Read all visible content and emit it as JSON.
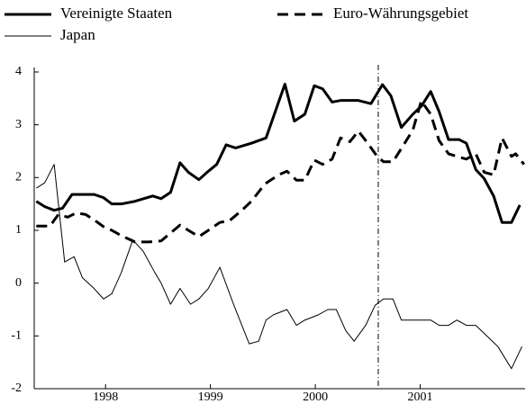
{
  "chart_data": {
    "type": "line",
    "xlim": [
      1997.82,
      2002.5
    ],
    "xticks": [
      {
        "value": 1998.5,
        "label": "1998"
      },
      {
        "value": 1999.5,
        "label": "1999"
      },
      {
        "value": 2000.5,
        "label": "2000"
      },
      {
        "value": 2001.5,
        "label": "2001"
      }
    ],
    "ylim": [
      -2,
      4
    ],
    "yticks": [
      -2,
      -1,
      0,
      1,
      2,
      3,
      4
    ],
    "vline": 2001.1,
    "series": [
      {
        "name": "Vereinigte Staaten",
        "color": "#000000",
        "width": 3,
        "dash": "solid",
        "x": [
          1997.84,
          1997.92,
          1998.01,
          1998.09,
          1998.18,
          1998.26,
          1998.39,
          1998.48,
          1998.56,
          1998.65,
          1998.78,
          1998.95,
          1999.03,
          1999.12,
          1999.21,
          1999.29,
          1999.39,
          1999.48,
          1999.56,
          1999.65,
          1999.74,
          1999.89,
          2000.03,
          2000.21,
          2000.3,
          2000.4,
          2000.49,
          2000.57,
          2000.66,
          2000.74,
          2000.91,
          2001.03,
          2001.14,
          2001.22,
          2001.32,
          2001.43,
          2001.51,
          2001.6,
          2001.68,
          2001.77,
          2001.87,
          2001.94,
          2002.03,
          2002.11,
          2002.2,
          2002.28,
          2002.37,
          2002.45
        ],
        "values": [
          1.55,
          1.45,
          1.38,
          1.42,
          1.68,
          1.68,
          1.68,
          1.62,
          1.5,
          1.5,
          1.55,
          1.65,
          1.6,
          1.72,
          2.28,
          2.1,
          1.96,
          2.12,
          2.25,
          2.62,
          2.56,
          2.65,
          2.75,
          3.77,
          3.07,
          3.2,
          3.74,
          3.68,
          3.43,
          3.46,
          3.46,
          3.4,
          3.76,
          3.55,
          2.95,
          3.2,
          3.35,
          3.63,
          3.25,
          2.72,
          2.72,
          2.65,
          2.15,
          1.98,
          1.65,
          1.15,
          1.15,
          1.48
        ]
      },
      {
        "name": "Euro-Währungsgebiet",
        "color": "#000000",
        "width": 3,
        "dash": "dashed",
        "x": [
          1997.84,
          1997.97,
          1998.05,
          1998.14,
          1998.22,
          1998.31,
          1998.39,
          1998.48,
          1998.56,
          1998.65,
          1998.78,
          1998.91,
          1999.03,
          1999.12,
          1999.21,
          1999.29,
          1999.39,
          1999.48,
          1999.59,
          1999.68,
          1999.8,
          1999.89,
          2000.02,
          2000.15,
          2000.23,
          2000.32,
          2000.4,
          2000.49,
          2000.57,
          2000.66,
          2000.74,
          2000.83,
          2000.91,
          2001.0,
          2001.09,
          2001.15,
          2001.24,
          2001.32,
          2001.43,
          2001.51,
          2001.6,
          2001.68,
          2001.77,
          2001.85,
          2001.94,
          2002.03,
          2002.11,
          2002.2,
          2002.28,
          2002.37,
          2002.41,
          2002.49
        ],
        "values": [
          1.08,
          1.08,
          1.3,
          1.25,
          1.33,
          1.3,
          1.2,
          1.07,
          1.0,
          0.9,
          0.78,
          0.78,
          0.8,
          0.95,
          1.1,
          1.0,
          0.88,
          1.0,
          1.15,
          1.18,
          1.38,
          1.55,
          1.88,
          2.05,
          2.12,
          1.95,
          1.95,
          2.33,
          2.25,
          2.35,
          2.75,
          2.68,
          2.88,
          2.65,
          2.4,
          2.3,
          2.3,
          2.55,
          2.9,
          3.45,
          3.2,
          2.7,
          2.45,
          2.4,
          2.35,
          2.45,
          2.1,
          2.05,
          2.75,
          2.4,
          2.45,
          2.25
        ]
      },
      {
        "name": "Japan",
        "color": "#000000",
        "width": 1,
        "dash": "solid",
        "x": [
          1997.84,
          1997.92,
          1998.01,
          1998.11,
          1998.2,
          1998.28,
          1998.39,
          1998.48,
          1998.56,
          1998.65,
          1998.76,
          1998.86,
          1998.97,
          1999.03,
          1999.12,
          1999.21,
          1999.31,
          1999.39,
          1999.48,
          1999.59,
          1999.72,
          1999.87,
          1999.96,
          2000.03,
          2000.1,
          2000.23,
          2000.32,
          2000.4,
          2000.53,
          2000.62,
          2000.7,
          2000.79,
          2000.87,
          2000.98,
          2001.07,
          2001.15,
          2001.24,
          2001.32,
          2001.51,
          2001.6,
          2001.68,
          2001.77,
          2001.85,
          2001.94,
          2002.03,
          2002.24,
          2002.37,
          2002.47
        ],
        "values": [
          1.8,
          1.9,
          2.25,
          0.4,
          0.5,
          0.1,
          -0.1,
          -0.3,
          -0.2,
          0.2,
          0.82,
          0.6,
          0.2,
          0,
          -0.4,
          -0.1,
          -0.4,
          -0.3,
          -0.1,
          0.3,
          -0.4,
          -1.15,
          -1.1,
          -0.7,
          -0.6,
          -0.5,
          -0.8,
          -0.7,
          -0.6,
          -0.5,
          -0.5,
          -0.9,
          -1.1,
          -0.8,
          -0.42,
          -0.3,
          -0.3,
          -0.7,
          -0.7,
          -0.7,
          -0.8,
          -0.8,
          -0.7,
          -0.8,
          -0.8,
          -1.2,
          -1.62,
          -1.2
        ]
      }
    ]
  }
}
